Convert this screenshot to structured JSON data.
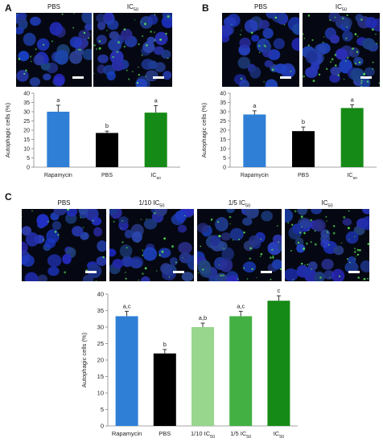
{
  "panels": {
    "A": {
      "letter": "A",
      "image_titles": [
        "PBS",
        "IC50"
      ]
    },
    "B": {
      "letter": "B",
      "image_titles": [
        "PBS",
        "IC50"
      ]
    },
    "C": {
      "letter": "C",
      "image_titles": [
        "PBS",
        "1/10 IC50",
        "1/5 IC50",
        "IC50"
      ]
    }
  },
  "colors": {
    "rapamycin": "#2f7fd6",
    "pbs": "#000000",
    "ic50": "#168a16",
    "tenth_ic50": "#97d68c",
    "fifth_ic50": "#43b043",
    "nucleus": "#1f2fb0",
    "puncta": "#58e058"
  },
  "chart_data": [
    {
      "panel": "A",
      "type": "bar",
      "ylabel": "Autophagic cells (%)",
      "ylim": [
        0,
        40
      ],
      "yticks": [
        0,
        5,
        10,
        15,
        20,
        25,
        30,
        35,
        40
      ],
      "categories": [
        "Rapamycin",
        "PBS",
        "IC50"
      ],
      "values": [
        30,
        18.5,
        29.5
      ],
      "errors": [
        3.5,
        1,
        3.8
      ],
      "significance": [
        "a",
        "b",
        "a"
      ],
      "bar_colors": [
        "#2f7fd6",
        "#000000",
        "#168a16"
      ]
    },
    {
      "panel": "B",
      "type": "bar",
      "ylabel": "Autophagic cells (%)",
      "ylim": [
        0,
        40
      ],
      "yticks": [
        0,
        5,
        10,
        15,
        20,
        25,
        30,
        35,
        40
      ],
      "categories": [
        "Rapamycin",
        "PBS",
        "IC50"
      ],
      "values": [
        28.5,
        19.5,
        32
      ],
      "errors": [
        2,
        2.2,
        1.8
      ],
      "significance": [
        "a",
        "b",
        "a"
      ],
      "bar_colors": [
        "#2f7fd6",
        "#000000",
        "#168a16"
      ]
    },
    {
      "panel": "C",
      "type": "bar",
      "ylabel": "Autophagic cells (%)",
      "ylim": [
        0,
        40
      ],
      "yticks": [
        0,
        5,
        10,
        15,
        20,
        25,
        30,
        35,
        40
      ],
      "categories": [
        "Rapamycin",
        "PBS",
        "1/10 IC50",
        "1/5 IC50",
        "IC50"
      ],
      "values": [
        33.3,
        22,
        30,
        33.3,
        38
      ],
      "errors": [
        1.5,
        1.2,
        1.2,
        1.5,
        1.5
      ],
      "significance": [
        "a,c",
        "b",
        "a,b",
        "a,c",
        "c"
      ],
      "bar_colors": [
        "#2f7fd6",
        "#000000",
        "#97d68c",
        "#43b043",
        "#168a16"
      ]
    }
  ]
}
